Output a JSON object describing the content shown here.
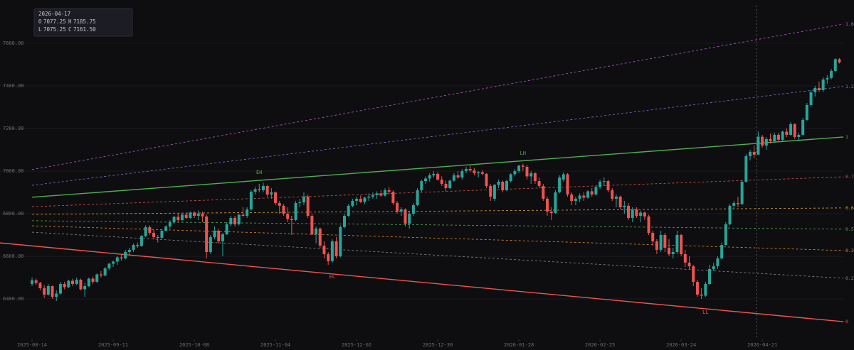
{
  "chart_data": {
    "type": "candlestick",
    "up_color": "#26a69a",
    "down_color": "#ef5350",
    "xlim": [
      -7.9,
      201.2
    ],
    "ylim": [
      6220,
      7803
    ],
    "xticks": [
      {
        "value": 0,
        "label": "2025-08-14"
      },
      {
        "value": 20,
        "label": "2025-09-11"
      },
      {
        "value": 40,
        "label": "2025-10-08"
      },
      {
        "value": 60,
        "label": "2025-11-04"
      },
      {
        "value": 80,
        "label": "2025-12-02"
      },
      {
        "value": 100,
        "label": "2025-12-30"
      },
      {
        "value": 120,
        "label": "2026-01-28"
      },
      {
        "value": 140,
        "label": "2026-02-25"
      },
      {
        "value": 160,
        "label": "2026-03-24"
      },
      {
        "value": 180,
        "label": "2026-04-21"
      }
    ],
    "yticks": [
      {
        "value": 6400,
        "label": "6400.00"
      },
      {
        "value": 6600,
        "label": "6600.00"
      },
      {
        "value": 6800,
        "label": "6800.00"
      },
      {
        "value": 7000,
        "label": "7000.00"
      },
      {
        "value": 7200,
        "label": "7200.00"
      },
      {
        "value": 7400,
        "label": "7400.00"
      },
      {
        "value": 7600,
        "label": "7600.00"
      }
    ],
    "grid": true,
    "readout": {
      "date": "2026-04-17",
      "fields": [
        {
          "key": "O",
          "value": 7077.25
        },
        {
          "key": "H",
          "value": 7185.75
        },
        {
          "key": "L",
          "value": 7075.25
        },
        {
          "key": "C",
          "value": 7161.5,
          "label": "7161.50"
        }
      ]
    },
    "lines": [
      {
        "name": "1.6",
        "color": "#b05fc0",
        "style": "dashed",
        "x": [
          0,
          200
        ],
        "values": [
          7007,
          7690
        ]
      },
      {
        "name": "1.2",
        "color": "#6f78d0",
        "style": "dashed",
        "x": [
          0,
          200
        ],
        "values": [
          6933,
          7397
        ]
      },
      {
        "name": "1",
        "color": "#4caf50",
        "style": "solid",
        "x": [
          0,
          200
        ],
        "values": [
          6877,
          7160
        ]
      },
      {
        "name": "0.7",
        "color": "#d9534f",
        "style": "dashed",
        "x": [
          0,
          200
        ],
        "values": [
          6833,
          6973
        ]
      },
      {
        "name": "0.6",
        "color": "#e0a030",
        "style": "dashed",
        "x": [
          0,
          200
        ],
        "values": [
          6797,
          6827
        ]
      },
      {
        "name": "0.5",
        "color": "#4caf50",
        "style": "dashed",
        "x": [
          0,
          200
        ],
        "values": [
          6767,
          6727
        ]
      },
      {
        "name": "0.3",
        "color": "#e08a30",
        "style": "dashed",
        "x": [
          0,
          200
        ],
        "values": [
          6743,
          6627
        ]
      },
      {
        "name": "0.2",
        "color": "#8a8a8a",
        "style": "dashed",
        "x": [
          0,
          200
        ],
        "values": [
          6713,
          6497
        ]
      },
      {
        "name": "0",
        "color": "#ef5350",
        "style": "solid",
        "x": [
          -8,
          200
        ],
        "values": [
          6663,
          6293
        ]
      }
    ],
    "annotations": [
      {
        "text": "EH",
        "color": "#4caf50",
        "x": 56,
        "y": 6993
      },
      {
        "text": "EL",
        "color": "#ef5350",
        "x": 74,
        "y": 6503
      },
      {
        "text": "LH",
        "color": "#4caf50",
        "x": 121,
        "y": 7083
      },
      {
        "text": "LL",
        "color": "#ef5350",
        "x": 166,
        "y": 6337
      }
    ],
    "candles": [
      [
        6470,
        6500,
        6460,
        6487
      ],
      [
        6487,
        6495,
        6465,
        6475
      ],
      [
        6475,
        6480,
        6440,
        6450
      ],
      [
        6450,
        6465,
        6405,
        6420
      ],
      [
        6420,
        6470,
        6415,
        6460
      ],
      [
        6460,
        6462,
        6400,
        6410
      ],
      [
        6410,
        6440,
        6390,
        6425
      ],
      [
        6425,
        6480,
        6420,
        6470
      ],
      [
        6470,
        6480,
        6445,
        6455
      ],
      [
        6455,
        6490,
        6450,
        6485
      ],
      [
        6485,
        6495,
        6460,
        6470
      ],
      [
        6470,
        6500,
        6465,
        6490
      ],
      [
        6490,
        6495,
        6440,
        6445
      ],
      [
        6445,
        6475,
        6410,
        6460
      ],
      [
        6460,
        6500,
        6455,
        6495
      ],
      [
        6495,
        6505,
        6470,
        6480
      ],
      [
        6480,
        6520,
        6475,
        6515
      ],
      [
        6515,
        6530,
        6500,
        6510
      ],
      [
        6510,
        6550,
        6505,
        6543
      ],
      [
        6543,
        6570,
        6535,
        6565
      ],
      [
        6565,
        6580,
        6550,
        6575
      ],
      [
        6575,
        6600,
        6560,
        6595
      ],
      [
        6595,
        6610,
        6580,
        6590
      ],
      [
        6590,
        6630,
        6585,
        6620
      ],
      [
        6620,
        6640,
        6605,
        6630
      ],
      [
        6630,
        6660,
        6620,
        6653
      ],
      [
        6653,
        6665,
        6640,
        6648
      ],
      [
        6648,
        6700,
        6645,
        6695
      ],
      [
        6695,
        6745,
        6690,
        6737
      ],
      [
        6737,
        6745,
        6700,
        6710
      ],
      [
        6710,
        6725,
        6680,
        6690
      ],
      [
        6690,
        6700,
        6665,
        6687
      ],
      [
        6687,
        6725,
        6680,
        6720
      ],
      [
        6720,
        6745,
        6715,
        6740
      ],
      [
        6740,
        6770,
        6730,
        6760
      ],
      [
        6760,
        6790,
        6750,
        6785
      ],
      [
        6785,
        6800,
        6760,
        6770
      ],
      [
        6770,
        6800,
        6765,
        6795
      ],
      [
        6795,
        6805,
        6775,
        6780
      ],
      [
        6780,
        6810,
        6775,
        6805
      ],
      [
        6805,
        6812,
        6780,
        6790
      ],
      [
        6790,
        6815,
        6770,
        6800
      ],
      [
        6800,
        6810,
        6760,
        6787
      ],
      [
        6787,
        6795,
        6590,
        6620
      ],
      [
        6620,
        6700,
        6610,
        6690
      ],
      [
        6690,
        6740,
        6680,
        6720
      ],
      [
        6720,
        6730,
        6660,
        6670
      ],
      [
        6670,
        6710,
        6600,
        6703
      ],
      [
        6703,
        6760,
        6700,
        6750
      ],
      [
        6750,
        6790,
        6740,
        6780
      ],
      [
        6780,
        6790,
        6740,
        6750
      ],
      [
        6750,
        6800,
        6745,
        6795
      ],
      [
        6795,
        6830,
        6785,
        6790
      ],
      [
        6790,
        6830,
        6780,
        6820
      ],
      [
        6820,
        6910,
        6815,
        6903
      ],
      [
        6903,
        6925,
        6890,
        6915
      ],
      [
        6915,
        6940,
        6900,
        6910
      ],
      [
        6910,
        6945,
        6900,
        6930
      ],
      [
        6930,
        6935,
        6880,
        6890
      ],
      [
        6890,
        6920,
        6870,
        6900
      ],
      [
        6900,
        6905,
        6840,
        6850
      ],
      [
        6850,
        6860,
        6800,
        6837
      ],
      [
        6837,
        6845,
        6790,
        6800
      ],
      [
        6800,
        6830,
        6760,
        6775
      ],
      [
        6775,
        6790,
        6700,
        6770
      ],
      [
        6770,
        6860,
        6765,
        6850
      ],
      [
        6850,
        6870,
        6830,
        6853
      ],
      [
        6853,
        6900,
        6840,
        6880
      ],
      [
        6880,
        6890,
        6780,
        6790
      ],
      [
        6790,
        6800,
        6700,
        6703
      ],
      [
        6703,
        6740,
        6660,
        6730
      ],
      [
        6730,
        6735,
        6640,
        6650
      ],
      [
        6650,
        6670,
        6590,
        6610
      ],
      [
        6610,
        6620,
        6560,
        6577
      ],
      [
        6577,
        6680,
        6570,
        6670
      ],
      [
        6670,
        6690,
        6590,
        6600
      ],
      [
        6600,
        6745,
        6595,
        6737
      ],
      [
        6737,
        6800,
        6730,
        6790
      ],
      [
        6790,
        6845,
        6785,
        6837
      ],
      [
        6837,
        6870,
        6830,
        6860
      ],
      [
        6860,
        6880,
        6840,
        6870
      ],
      [
        6870,
        6885,
        6850,
        6855
      ],
      [
        6855,
        6880,
        6845,
        6875
      ],
      [
        6875,
        6895,
        6860,
        6880
      ],
      [
        6880,
        6900,
        6870,
        6887
      ],
      [
        6887,
        6905,
        6870,
        6895
      ],
      [
        6895,
        6910,
        6880,
        6885
      ],
      [
        6885,
        6920,
        6880,
        6910
      ],
      [
        6910,
        6925,
        6890,
        6903
      ],
      [
        6903,
        6910,
        6840,
        6850
      ],
      [
        6850,
        6860,
        6800,
        6810
      ],
      [
        6810,
        6830,
        6790,
        6820
      ],
      [
        6820,
        6825,
        6740,
        6753
      ],
      [
        6753,
        6810,
        6730,
        6800
      ],
      [
        6800,
        6850,
        6790,
        6840
      ],
      [
        6840,
        6920,
        6835,
        6910
      ],
      [
        6910,
        6960,
        6900,
        6953
      ],
      [
        6953,
        6975,
        6940,
        6965
      ],
      [
        6965,
        6990,
        6950,
        6980
      ],
      [
        6980,
        7000,
        6970,
        6987
      ],
      [
        6987,
        6995,
        6955,
        6960
      ],
      [
        6960,
        6975,
        6930,
        6940
      ],
      [
        6940,
        6955,
        6905,
        6920
      ],
      [
        6920,
        6960,
        6915,
        6955
      ],
      [
        6955,
        6990,
        6950,
        6980
      ],
      [
        6980,
        7000,
        6965,
        6970
      ],
      [
        6970,
        7010,
        6960,
        7000
      ],
      [
        7000,
        7020,
        6990,
        7010
      ],
      [
        7010,
        7025,
        6995,
        7003
      ],
      [
        7003,
        7015,
        6980,
        6990
      ],
      [
        6990,
        7000,
        6970,
        6995
      ],
      [
        6995,
        7005,
        6980,
        6987
      ],
      [
        6987,
        6990,
        6920,
        6930
      ],
      [
        6930,
        6940,
        6860,
        6880
      ],
      [
        6870,
        6940,
        6860,
        6935
      ],
      [
        6935,
        6960,
        6920,
        6950
      ],
      [
        6950,
        6955,
        6900,
        6910
      ],
      [
        6910,
        6960,
        6905,
        6953
      ],
      [
        6953,
        6990,
        6945,
        6985
      ],
      [
        6985,
        7010,
        6975,
        7000
      ],
      [
        7000,
        7030,
        6990,
        7025
      ],
      [
        7025,
        7035,
        7000,
        7020
      ],
      [
        7020,
        7030,
        6960,
        6975
      ],
      [
        6975,
        7000,
        6940,
        6990
      ],
      [
        6990,
        6995,
        6940,
        6953
      ],
      [
        6953,
        6970,
        6920,
        6930
      ],
      [
        6930,
        6940,
        6860,
        6870
      ],
      [
        6870,
        6880,
        6790,
        6810
      ],
      [
        6810,
        6830,
        6770,
        6803
      ],
      [
        6803,
        6910,
        6800,
        6900
      ],
      [
        6900,
        6980,
        6895,
        6970
      ],
      [
        6960,
        6995,
        6950,
        6985
      ],
      [
        6985,
        6990,
        6880,
        6890
      ],
      [
        6890,
        6900,
        6840,
        6860
      ],
      [
        6860,
        6880,
        6840,
        6870
      ],
      [
        6870,
        6895,
        6855,
        6885
      ],
      [
        6885,
        6900,
        6860,
        6875
      ],
      [
        6875,
        6910,
        6870,
        6905
      ],
      [
        6905,
        6920,
        6880,
        6890
      ],
      [
        6890,
        6930,
        6885,
        6925
      ],
      [
        6925,
        6960,
        6915,
        6950
      ],
      [
        6950,
        6970,
        6930,
        6953
      ],
      [
        6953,
        6960,
        6900,
        6910
      ],
      [
        6910,
        6920,
        6860,
        6870
      ],
      [
        6870,
        6890,
        6830,
        6880
      ],
      [
        6880,
        6885,
        6820,
        6830
      ],
      [
        6830,
        6860,
        6800,
        6837
      ],
      [
        6837,
        6850,
        6770,
        6780
      ],
      [
        6780,
        6830,
        6760,
        6820
      ],
      [
        6820,
        6830,
        6780,
        6790
      ],
      [
        6790,
        6815,
        6760,
        6805
      ],
      [
        6805,
        6810,
        6770,
        6787
      ],
      [
        6787,
        6795,
        6700,
        6710
      ],
      [
        6710,
        6720,
        6650,
        6670
      ],
      [
        6670,
        6680,
        6610,
        6630
      ],
      [
        6630,
        6720,
        6620,
        6700
      ],
      [
        6700,
        6710,
        6620,
        6640
      ],
      [
        6640,
        6680,
        6600,
        6610
      ],
      [
        6610,
        6640,
        6590,
        6620
      ],
      [
        6620,
        6720,
        6610,
        6700
      ],
      [
        6700,
        6705,
        6600,
        6610
      ],
      [
        6610,
        6630,
        6550,
        6570
      ],
      [
        6570,
        6600,
        6540,
        6553
      ],
      [
        6553,
        6560,
        6460,
        6480
      ],
      [
        6480,
        6490,
        6410,
        6420
      ],
      [
        6420,
        6450,
        6400,
        6415
      ],
      [
        6415,
        6480,
        6410,
        6470
      ],
      [
        6470,
        6560,
        6465,
        6540
      ],
      [
        6540,
        6570,
        6530,
        6553
      ],
      [
        6553,
        6600,
        6540,
        6590
      ],
      [
        6590,
        6665,
        6585,
        6653
      ],
      [
        6653,
        6760,
        6650,
        6750
      ],
      [
        6750,
        6845,
        6745,
        6837
      ],
      [
        6837,
        6860,
        6820,
        6850
      ],
      [
        6850,
        6880,
        6830,
        6845
      ],
      [
        6845,
        6960,
        6840,
        6950
      ],
      [
        6950,
        7080,
        6945,
        7070
      ],
      [
        7070,
        7100,
        7050,
        7090
      ],
      [
        7090,
        7120,
        7060,
        7077
      ],
      [
        7077.25,
        7185.75,
        7075.25,
        7161.5
      ],
      [
        7161,
        7170,
        7110,
        7120
      ],
      [
        7120,
        7160,
        7100,
        7150
      ],
      [
        7150,
        7175,
        7130,
        7140
      ],
      [
        7140,
        7180,
        7135,
        7170
      ],
      [
        7170,
        7180,
        7140,
        7147
      ],
      [
        7147,
        7190,
        7140,
        7185
      ],
      [
        7185,
        7200,
        7160,
        7170
      ],
      [
        7170,
        7230,
        7165,
        7220
      ],
      [
        7220,
        7225,
        7150,
        7160
      ],
      [
        7160,
        7180,
        7140,
        7170
      ],
      [
        7170,
        7250,
        7165,
        7240
      ],
      [
        7240,
        7320,
        7235,
        7310
      ],
      [
        7310,
        7380,
        7300,
        7370
      ],
      [
        7370,
        7400,
        7350,
        7390
      ],
      [
        7390,
        7420,
        7370,
        7380
      ],
      [
        7380,
        7440,
        7370,
        7430
      ],
      [
        7430,
        7450,
        7410,
        7437
      ],
      [
        7437,
        7480,
        7430,
        7470
      ],
      [
        7470,
        7530,
        7465,
        7525
      ],
      [
        7525,
        7530,
        7505,
        7510
      ]
    ]
  }
}
